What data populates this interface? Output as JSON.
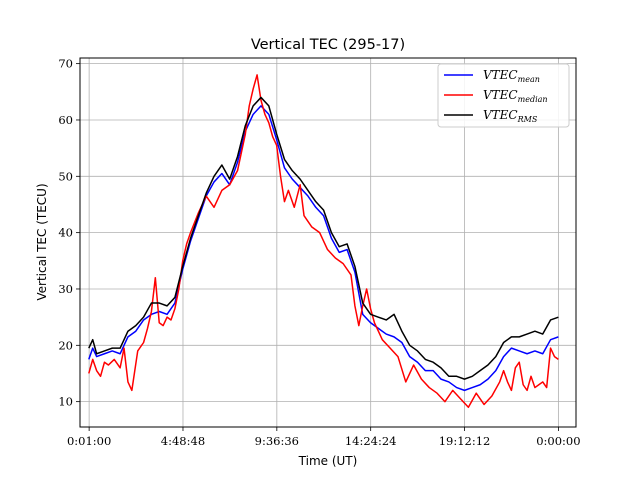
{
  "chart_data": {
    "type": "line",
    "title": "Vertical TEC (295-17)",
    "xlabel": "Time (UT)",
    "ylabel": "Vertical TEC (TECU)",
    "x_unit": "hours UT",
    "xlim": [
      -0.45,
      24.9
    ],
    "ylim": [
      5.5,
      71.0
    ],
    "x_ticks": [
      {
        "value": 0.0167,
        "label": "0:01:00"
      },
      {
        "value": 4.8133,
        "label": "4:48:48"
      },
      {
        "value": 9.61,
        "label": "9:36:36"
      },
      {
        "value": 14.4067,
        "label": "14:24:24"
      },
      {
        "value": 19.2033,
        "label": "19:12:12"
      },
      {
        "value": 24.0,
        "label": "0:00:00"
      }
    ],
    "y_ticks": [
      10,
      20,
      30,
      40,
      50,
      60,
      70
    ],
    "grid": true,
    "legend_position": "top-right",
    "series": [
      {
        "name": "VTEC",
        "name_subscript": "mean",
        "color": "#0000ff",
        "x": [
          0.0,
          0.2,
          0.4,
          0.8,
          1.2,
          1.6,
          2.0,
          2.4,
          2.8,
          3.2,
          3.6,
          4.0,
          4.4,
          4.8,
          5.2,
          5.6,
          6.0,
          6.4,
          6.8,
          7.2,
          7.6,
          8.0,
          8.4,
          8.8,
          9.2,
          9.6,
          10.0,
          10.4,
          10.8,
          11.2,
          11.6,
          12.0,
          12.4,
          12.8,
          13.2,
          13.6,
          14.0,
          14.4,
          14.8,
          15.2,
          15.6,
          16.0,
          16.4,
          16.8,
          17.2,
          17.6,
          18.0,
          18.4,
          18.8,
          19.2,
          19.6,
          20.0,
          20.4,
          20.8,
          21.2,
          21.6,
          22.0,
          22.4,
          22.8,
          23.2,
          23.6,
          24.0
        ],
        "y": [
          17.5,
          19.5,
          18.0,
          18.5,
          19.0,
          18.5,
          21.5,
          22.5,
          24.5,
          25.5,
          26.0,
          25.5,
          27.5,
          33.5,
          38.5,
          42.5,
          46.5,
          49.0,
          50.5,
          48.5,
          52.5,
          58.0,
          61.0,
          62.5,
          61.0,
          56.5,
          51.5,
          49.5,
          48.0,
          46.5,
          44.5,
          43.0,
          39.0,
          36.5,
          37.0,
          33.0,
          25.5,
          24.0,
          23.0,
          22.0,
          21.5,
          20.5,
          18.0,
          17.0,
          15.5,
          15.5,
          14.0,
          13.5,
          12.5,
          12.0,
          12.5,
          13.0,
          14.0,
          15.5,
          18.0,
          19.5,
          19.0,
          18.5,
          19.0,
          18.5,
          21.0,
          21.5
        ]
      },
      {
        "name": "VTEC",
        "name_subscript": "median",
        "color": "#ff0000",
        "x": [
          0.0,
          0.2,
          0.4,
          0.6,
          0.8,
          1.0,
          1.3,
          1.6,
          1.8,
          2.0,
          2.2,
          2.5,
          2.8,
          3.0,
          3.2,
          3.4,
          3.6,
          3.8,
          4.0,
          4.2,
          4.4,
          4.6,
          4.8,
          5.0,
          5.2,
          5.6,
          6.0,
          6.4,
          6.8,
          7.2,
          7.6,
          8.0,
          8.2,
          8.4,
          8.6,
          8.8,
          9.0,
          9.2,
          9.4,
          9.6,
          9.8,
          10.0,
          10.2,
          10.5,
          10.8,
          11.0,
          11.4,
          11.8,
          12.2,
          12.6,
          13.0,
          13.4,
          13.6,
          13.8,
          14.0,
          14.2,
          14.4,
          14.6,
          14.8,
          15.0,
          15.4,
          15.8,
          16.2,
          16.6,
          17.0,
          17.4,
          17.8,
          18.2,
          18.6,
          19.0,
          19.4,
          19.8,
          20.2,
          20.6,
          21.0,
          21.2,
          21.4,
          21.6,
          21.8,
          22.0,
          22.2,
          22.4,
          22.6,
          22.8,
          23.0,
          23.2,
          23.4,
          23.6,
          23.8,
          24.0
        ],
        "y": [
          15.0,
          17.5,
          15.5,
          14.5,
          17.0,
          16.5,
          17.5,
          16.0,
          19.5,
          13.5,
          12.0,
          19.0,
          20.5,
          23.0,
          26.0,
          32.0,
          24.0,
          23.5,
          25.0,
          24.5,
          26.5,
          30.0,
          35.0,
          38.0,
          40.0,
          43.5,
          46.5,
          44.5,
          47.5,
          48.5,
          51.0,
          57.5,
          62.5,
          65.5,
          68.0,
          63.5,
          61.0,
          59.5,
          57.0,
          55.5,
          50.0,
          45.5,
          47.5,
          44.5,
          48.5,
          43.0,
          41.0,
          40.0,
          37.0,
          35.5,
          34.5,
          32.5,
          27.0,
          23.5,
          27.0,
          30.0,
          26.5,
          24.0,
          22.5,
          21.0,
          19.5,
          18.0,
          13.5,
          16.5,
          14.0,
          12.5,
          11.5,
          10.0,
          12.0,
          10.5,
          9.0,
          11.5,
          9.5,
          11.0,
          13.5,
          15.5,
          13.5,
          12.0,
          16.0,
          17.0,
          13.0,
          12.0,
          14.5,
          12.5,
          13.0,
          13.5,
          12.5,
          19.5,
          18.0,
          17.5
        ]
      },
      {
        "name": "VTEC",
        "name_subscript": "RMS",
        "color": "#000000",
        "x": [
          0.0,
          0.2,
          0.4,
          0.8,
          1.2,
          1.6,
          2.0,
          2.4,
          2.8,
          3.2,
          3.6,
          4.0,
          4.4,
          4.8,
          5.2,
          5.6,
          6.0,
          6.4,
          6.8,
          7.2,
          7.6,
          8.0,
          8.4,
          8.8,
          9.2,
          9.6,
          10.0,
          10.4,
          10.8,
          11.2,
          11.6,
          12.0,
          12.4,
          12.8,
          13.2,
          13.6,
          14.0,
          14.4,
          14.8,
          15.2,
          15.6,
          16.0,
          16.4,
          16.8,
          17.2,
          17.6,
          18.0,
          18.4,
          18.8,
          19.2,
          19.6,
          20.0,
          20.4,
          20.8,
          21.2,
          21.6,
          22.0,
          22.4,
          22.8,
          23.2,
          23.6,
          24.0
        ],
        "y": [
          19.5,
          21.0,
          18.5,
          19.0,
          19.5,
          19.5,
          22.5,
          23.5,
          25.0,
          27.5,
          27.5,
          27.0,
          28.5,
          34.0,
          39.0,
          43.0,
          47.0,
          50.0,
          52.0,
          49.5,
          53.5,
          59.0,
          62.5,
          64.0,
          62.5,
          57.5,
          53.0,
          51.0,
          49.5,
          47.5,
          45.5,
          44.0,
          40.0,
          37.5,
          38.0,
          34.0,
          27.5,
          25.5,
          25.0,
          24.5,
          25.5,
          22.5,
          20.0,
          19.0,
          17.5,
          17.0,
          16.0,
          14.5,
          14.5,
          14.0,
          14.5,
          15.5,
          16.5,
          18.0,
          20.5,
          21.5,
          21.5,
          22.0,
          22.5,
          22.0,
          24.5,
          25.0
        ]
      }
    ]
  }
}
